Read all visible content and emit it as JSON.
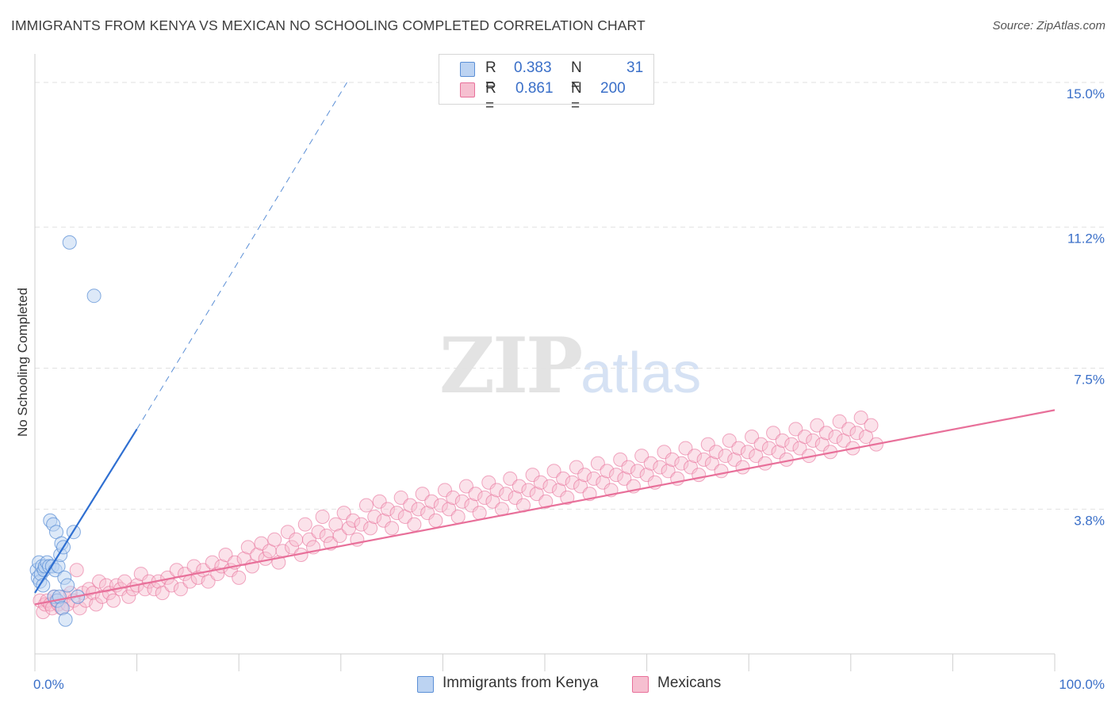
{
  "title": "IMMIGRANTS FROM KENYA VS MEXICAN NO SCHOOLING COMPLETED CORRELATION CHART",
  "source": "Source: ZipAtlas.com",
  "watermark": {
    "zip": "ZIP",
    "atlas": "atlas"
  },
  "colors": {
    "kenya": "#5b8fd6",
    "kenya_fill": "#bcd3f2",
    "mexicans": "#e8709a",
    "mexicans_fill": "#f6bfd0",
    "axis_label": "#3a6fc8",
    "grid": "#e2e2e2"
  },
  "legend": {
    "r_label": "R =",
    "n_label": "N =",
    "kenya": {
      "r": "0.383",
      "n": "31"
    },
    "mexicans": {
      "r": "0.861",
      "n": "200"
    }
  },
  "chart_data": {
    "type": "scatter",
    "title": "IMMIGRANTS FROM KENYA VS MEXICAN NO SCHOOLING COMPLETED CORRELATION CHART",
    "xlabel": "",
    "ylabel": "No Schooling Completed",
    "xlim": [
      0,
      100
    ],
    "ylim": [
      0,
      15.5
    ],
    "x_tick_labels": [
      "0.0%",
      "100.0%"
    ],
    "y_ticks": [
      3.8,
      7.5,
      11.2,
      15.0
    ],
    "y_tick_labels": [
      "3.8%",
      "7.5%",
      "11.2%",
      "15.0%"
    ],
    "grid": true,
    "legend_position": "top-center",
    "series": [
      {
        "name": "Immigrants from Kenya",
        "points": [
          [
            0.2,
            2.2
          ],
          [
            0.3,
            2.0
          ],
          [
            0.4,
            2.4
          ],
          [
            0.5,
            1.9
          ],
          [
            0.6,
            2.1
          ],
          [
            0.7,
            2.3
          ],
          [
            0.8,
            1.8
          ],
          [
            0.9,
            2.2
          ],
          [
            1.0,
            2.3
          ],
          [
            1.2,
            2.4
          ],
          [
            1.4,
            2.3
          ],
          [
            1.5,
            3.5
          ],
          [
            1.7,
            2.3
          ],
          [
            1.8,
            3.4
          ],
          [
            1.9,
            1.5
          ],
          [
            2.0,
            2.2
          ],
          [
            2.1,
            3.2
          ],
          [
            2.2,
            1.4
          ],
          [
            2.3,
            2.3
          ],
          [
            2.4,
            1.5
          ],
          [
            2.5,
            2.6
          ],
          [
            2.6,
            2.9
          ],
          [
            2.7,
            1.2
          ],
          [
            2.8,
            2.8
          ],
          [
            2.9,
            2.0
          ],
          [
            3.0,
            0.9
          ],
          [
            3.2,
            1.8
          ],
          [
            3.4,
            10.8
          ],
          [
            3.8,
            3.2
          ],
          [
            4.2,
            1.5
          ],
          [
            5.8,
            9.4
          ]
        ],
        "trend": {
          "x0": 0,
          "y0": 1.6,
          "x1": 10,
          "y1": 5.9,
          "dashed_to_x": 30.6,
          "dashed_to_y": 15.0
        }
      },
      {
        "name": "Mexicans",
        "points": [
          [
            0.5,
            1.4
          ],
          [
            0.8,
            1.1
          ],
          [
            1.0,
            1.3
          ],
          [
            1.2,
            1.4
          ],
          [
            1.5,
            1.3
          ],
          [
            1.7,
            1.2
          ],
          [
            1.9,
            1.5
          ],
          [
            2.1,
            1.4
          ],
          [
            2.3,
            1.3
          ],
          [
            2.6,
            1.2
          ],
          [
            2.9,
            1.5
          ],
          [
            3.2,
            1.3
          ],
          [
            3.5,
            1.6
          ],
          [
            3.8,
            1.4
          ],
          [
            4.1,
            2.2
          ],
          [
            4.4,
            1.2
          ],
          [
            4.7,
            1.6
          ],
          [
            5.0,
            1.4
          ],
          [
            5.3,
            1.7
          ],
          [
            5.7,
            1.6
          ],
          [
            6.0,
            1.3
          ],
          [
            6.3,
            1.9
          ],
          [
            6.6,
            1.5
          ],
          [
            7.0,
            1.8
          ],
          [
            7.3,
            1.6
          ],
          [
            7.7,
            1.4
          ],
          [
            8.0,
            1.8
          ],
          [
            8.4,
            1.7
          ],
          [
            8.8,
            1.9
          ],
          [
            9.2,
            1.5
          ],
          [
            9.6,
            1.7
          ],
          [
            10.0,
            1.8
          ],
          [
            10.4,
            2.1
          ],
          [
            10.8,
            1.7
          ],
          [
            11.2,
            1.9
          ],
          [
            11.7,
            1.7
          ],
          [
            12.1,
            1.9
          ],
          [
            12.5,
            1.6
          ],
          [
            13.0,
            2.0
          ],
          [
            13.4,
            1.8
          ],
          [
            13.9,
            2.2
          ],
          [
            14.3,
            1.7
          ],
          [
            14.7,
            2.1
          ],
          [
            15.2,
            1.9
          ],
          [
            15.6,
            2.3
          ],
          [
            16.0,
            2.0
          ],
          [
            16.5,
            2.2
          ],
          [
            17.0,
            1.9
          ],
          [
            17.4,
            2.4
          ],
          [
            17.9,
            2.1
          ],
          [
            18.3,
            2.3
          ],
          [
            18.7,
            2.6
          ],
          [
            19.2,
            2.2
          ],
          [
            19.6,
            2.4
          ],
          [
            20.0,
            2.0
          ],
          [
            20.5,
            2.5
          ],
          [
            20.9,
            2.8
          ],
          [
            21.3,
            2.3
          ],
          [
            21.8,
            2.6
          ],
          [
            22.2,
            2.9
          ],
          [
            22.6,
            2.5
          ],
          [
            23.0,
            2.7
          ],
          [
            23.5,
            3.0
          ],
          [
            23.9,
            2.4
          ],
          [
            24.3,
            2.7
          ],
          [
            24.8,
            3.2
          ],
          [
            25.2,
            2.8
          ],
          [
            25.6,
            3.0
          ],
          [
            26.1,
            2.6
          ],
          [
            26.5,
            3.4
          ],
          [
            26.9,
            3.0
          ],
          [
            27.3,
            2.8
          ],
          [
            27.8,
            3.2
          ],
          [
            28.2,
            3.6
          ],
          [
            28.6,
            3.1
          ],
          [
            29.0,
            2.9
          ],
          [
            29.5,
            3.4
          ],
          [
            29.9,
            3.1
          ],
          [
            30.3,
            3.7
          ],
          [
            30.8,
            3.3
          ],
          [
            31.2,
            3.5
          ],
          [
            31.6,
            3.0
          ],
          [
            32.0,
            3.4
          ],
          [
            32.5,
            3.9
          ],
          [
            32.9,
            3.3
          ],
          [
            33.3,
            3.6
          ],
          [
            33.8,
            4.0
          ],
          [
            34.2,
            3.5
          ],
          [
            34.6,
            3.8
          ],
          [
            35.0,
            3.3
          ],
          [
            35.5,
            3.7
          ],
          [
            35.9,
            4.1
          ],
          [
            36.3,
            3.6
          ],
          [
            36.8,
            3.9
          ],
          [
            37.2,
            3.4
          ],
          [
            37.6,
            3.8
          ],
          [
            38.0,
            4.2
          ],
          [
            38.5,
            3.7
          ],
          [
            38.9,
            4.0
          ],
          [
            39.3,
            3.5
          ],
          [
            39.8,
            3.9
          ],
          [
            40.2,
            4.3
          ],
          [
            40.6,
            3.8
          ],
          [
            41.0,
            4.1
          ],
          [
            41.5,
            3.6
          ],
          [
            41.9,
            4.0
          ],
          [
            42.3,
            4.4
          ],
          [
            42.8,
            3.9
          ],
          [
            43.2,
            4.2
          ],
          [
            43.6,
            3.7
          ],
          [
            44.1,
            4.1
          ],
          [
            44.5,
            4.5
          ],
          [
            44.9,
            4.0
          ],
          [
            45.3,
            4.3
          ],
          [
            45.8,
            3.8
          ],
          [
            46.2,
            4.2
          ],
          [
            46.6,
            4.6
          ],
          [
            47.1,
            4.1
          ],
          [
            47.5,
            4.4
          ],
          [
            47.9,
            3.9
          ],
          [
            48.4,
            4.3
          ],
          [
            48.8,
            4.7
          ],
          [
            49.2,
            4.2
          ],
          [
            49.6,
            4.5
          ],
          [
            50.1,
            4.0
          ],
          [
            50.5,
            4.4
          ],
          [
            50.9,
            4.8
          ],
          [
            51.4,
            4.3
          ],
          [
            51.8,
            4.6
          ],
          [
            52.2,
            4.1
          ],
          [
            52.7,
            4.5
          ],
          [
            53.1,
            4.9
          ],
          [
            53.5,
            4.4
          ],
          [
            53.9,
            4.7
          ],
          [
            54.4,
            4.2
          ],
          [
            54.8,
            4.6
          ],
          [
            55.2,
            5.0
          ],
          [
            55.7,
            4.5
          ],
          [
            56.1,
            4.8
          ],
          [
            56.5,
            4.3
          ],
          [
            57.0,
            4.7
          ],
          [
            57.4,
            5.1
          ],
          [
            57.8,
            4.6
          ],
          [
            58.2,
            4.9
          ],
          [
            58.7,
            4.4
          ],
          [
            59.1,
            4.8
          ],
          [
            59.5,
            5.2
          ],
          [
            60.0,
            4.7
          ],
          [
            60.4,
            5.0
          ],
          [
            60.8,
            4.5
          ],
          [
            61.3,
            4.9
          ],
          [
            61.7,
            5.3
          ],
          [
            62.1,
            4.8
          ],
          [
            62.5,
            5.1
          ],
          [
            63.0,
            4.6
          ],
          [
            63.4,
            5.0
          ],
          [
            63.8,
            5.4
          ],
          [
            64.3,
            4.9
          ],
          [
            64.7,
            5.2
          ],
          [
            65.1,
            4.7
          ],
          [
            65.6,
            5.1
          ],
          [
            66.0,
            5.5
          ],
          [
            66.4,
            5.0
          ],
          [
            66.8,
            5.3
          ],
          [
            67.3,
            4.8
          ],
          [
            67.7,
            5.2
          ],
          [
            68.1,
            5.6
          ],
          [
            68.6,
            5.1
          ],
          [
            69.0,
            5.4
          ],
          [
            69.4,
            4.9
          ],
          [
            69.9,
            5.3
          ],
          [
            70.3,
            5.7
          ],
          [
            70.7,
            5.2
          ],
          [
            71.2,
            5.5
          ],
          [
            71.6,
            5.0
          ],
          [
            72.0,
            5.4
          ],
          [
            72.4,
            5.8
          ],
          [
            72.9,
            5.3
          ],
          [
            73.3,
            5.6
          ],
          [
            73.7,
            5.1
          ],
          [
            74.2,
            5.5
          ],
          [
            74.6,
            5.9
          ],
          [
            75.0,
            5.4
          ],
          [
            75.5,
            5.7
          ],
          [
            75.9,
            5.2
          ],
          [
            76.3,
            5.6
          ],
          [
            76.7,
            6.0
          ],
          [
            77.2,
            5.5
          ],
          [
            77.6,
            5.8
          ],
          [
            78.0,
            5.3
          ],
          [
            78.5,
            5.7
          ],
          [
            78.9,
            6.1
          ],
          [
            79.3,
            5.6
          ],
          [
            79.8,
            5.9
          ],
          [
            80.2,
            5.4
          ],
          [
            80.6,
            5.8
          ],
          [
            81.0,
            6.2
          ],
          [
            81.5,
            5.7
          ],
          [
            82.0,
            6.0
          ],
          [
            82.5,
            5.5
          ]
        ],
        "trend": {
          "x0": 0,
          "y0": 1.3,
          "x1": 100,
          "y1": 6.4
        }
      }
    ]
  }
}
